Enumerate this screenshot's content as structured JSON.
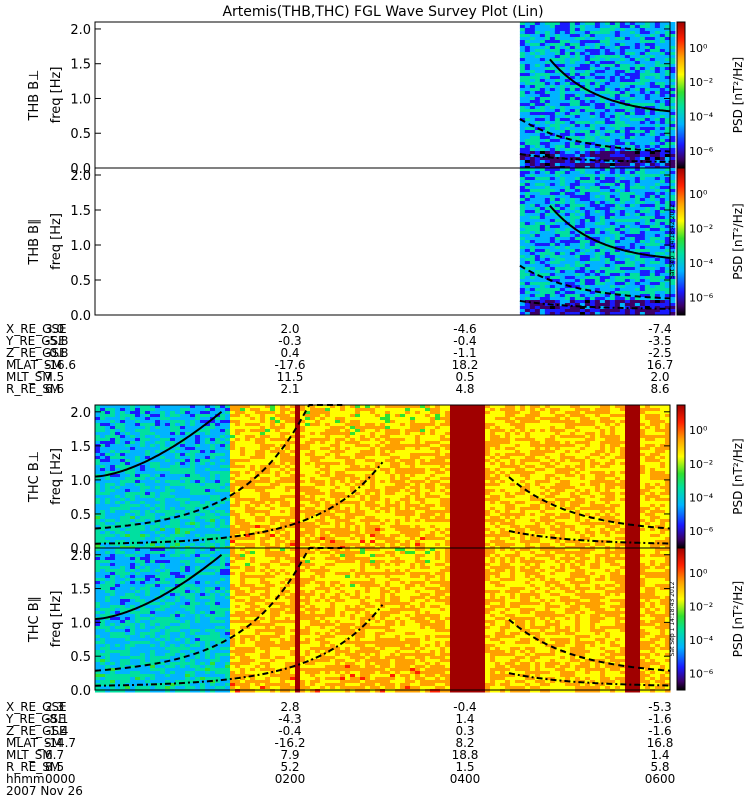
{
  "title": "Artemis(THB,THC) FGL Wave Survey Plot (Lin)",
  "colors": {
    "colormap": [
      "#000000",
      "#3b0066",
      "#1a1aff",
      "#00b4ff",
      "#00e0a0",
      "#30e030",
      "#ffff00",
      "#ffa000",
      "#ff2000",
      "#a00000"
    ],
    "background": "#ffffff",
    "line": "#000000"
  },
  "colorbar": {
    "label": "PSD [nT²/Hz]",
    "ticks": [
      "10⁰",
      "10⁻²",
      "10⁻⁴",
      "10⁻⁶"
    ],
    "tick_exponents": [
      0,
      -2,
      -4,
      -6
    ],
    "range_exponents": [
      -7,
      1.5
    ]
  },
  "side_labels": [
    "Sat Sep 1 14:18:42 2012",
    "Sat Sep 1 14:18:43 2012"
  ],
  "chart_data": [
    {
      "type": "heatmap",
      "panel": "THB B⊥",
      "label": "THB B⊥",
      "ylabel": "freq [Hz]",
      "ylim": [
        0,
        2.1
      ],
      "yticks": [
        "2.0",
        "1.5",
        "1.0",
        "0.5",
        "0.0"
      ],
      "ytick_values": [
        2.0,
        1.5,
        1.0,
        0.5,
        0.0
      ],
      "data_start_fraction": 0.739
    },
    {
      "type": "heatmap",
      "panel": "THB B∥",
      "label": "THB B∥",
      "ylabel": "freq [Hz]",
      "ylim": [
        0,
        2.1
      ],
      "yticks": [
        "2.0",
        "1.5",
        "1.0",
        "0.5",
        "0.0"
      ],
      "ytick_values": [
        2.0,
        1.5,
        1.0,
        0.5,
        0.0
      ],
      "data_start_fraction": 0.739
    },
    {
      "type": "heatmap",
      "panel": "THC B⊥",
      "label": "THC B⊥",
      "ylabel": "freq [Hz]",
      "ylim": [
        0,
        2.1
      ],
      "yticks": [
        "2.0",
        "1.5",
        "1.0",
        "0.5",
        "0.0"
      ],
      "ytick_values": [
        2.0,
        1.5,
        1.0,
        0.5,
        0.0
      ],
      "data_start_fraction": 0
    },
    {
      "type": "heatmap",
      "panel": "THC B∥",
      "label": "THC B∥",
      "ylabel": "freq [Hz]",
      "ylim": [
        0,
        2.1
      ],
      "yticks": [
        "2.0",
        "1.5",
        "1.0",
        "0.5",
        "0.0"
      ],
      "ytick_values": [
        2.0,
        1.5,
        1.0,
        0.5,
        0.0
      ],
      "data_start_fraction": 0
    }
  ],
  "ephemeris_thb": {
    "rows": [
      {
        "name": "X_RE_GSE",
        "values": [
          "3.0",
          "2.0",
          "-4.6",
          "-7.4"
        ]
      },
      {
        "name": "Y_RE_GSE",
        "values": [
          "-5.8",
          "-0.3",
          "-0.4",
          "-3.5"
        ]
      },
      {
        "name": "Z_RE_GSE",
        "values": [
          "-0.8",
          "0.4",
          "-1.1",
          "-2.5"
        ]
      },
      {
        "name": "MLAT_SM",
        "values": [
          "-16.6",
          "-17.6",
          "18.2",
          "16.7"
        ]
      },
      {
        "name": "MLT_SM",
        "values": [
          "7.5",
          "11.5",
          "0.5",
          "2.0"
        ]
      },
      {
        "name": "R_RE_SM",
        "values": [
          "6.6",
          "2.1",
          "4.8",
          "8.6"
        ]
      }
    ]
  },
  "ephemeris_thc": {
    "rows": [
      {
        "name": "X_RE_GSE",
        "values": [
          "2.3",
          "2.8",
          "-0.4",
          "-5.3"
        ]
      },
      {
        "name": "Y_RE_GSE",
        "values": [
          "-8.1",
          "-4.3",
          "1.4",
          "-1.6"
        ]
      },
      {
        "name": "Z_RE_GSE",
        "values": [
          "-1.4",
          "-0.4",
          "0.3",
          "-1.6"
        ]
      },
      {
        "name": "MLAT_SM",
        "values": [
          "-14.7",
          "-16.2",
          "8.2",
          "16.8"
        ]
      },
      {
        "name": "MLT_SM",
        "values": [
          "6.7",
          "7.9",
          "18.8",
          "1.4"
        ]
      },
      {
        "name": "R_RE_SM",
        "values": [
          "8.5",
          "5.2",
          "1.5",
          "5.8"
        ]
      },
      {
        "name": "hhmm",
        "values": [
          "0000",
          "0200",
          "0400",
          "0600"
        ]
      }
    ]
  },
  "date": "2007 Nov 26"
}
